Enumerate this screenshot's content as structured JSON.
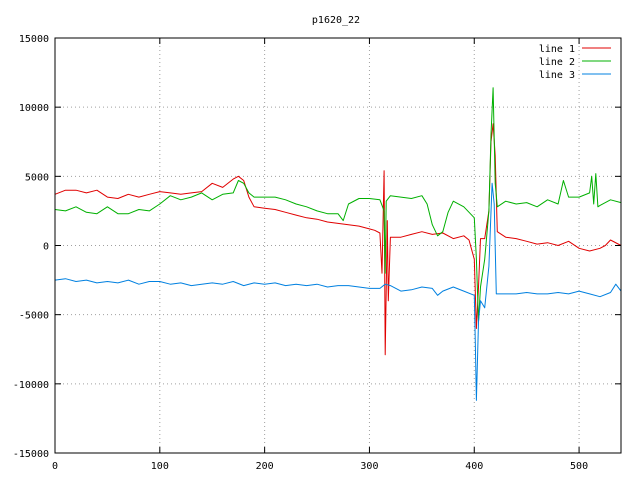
{
  "chart_data": {
    "type": "line",
    "title": "p1620_22",
    "xlabel": "",
    "ylabel": "",
    "xlim": [
      0,
      540
    ],
    "ylim": [
      -15000,
      15000
    ],
    "x_ticks": [
      0,
      100,
      200,
      300,
      400,
      500
    ],
    "y_ticks": [
      -15000,
      -10000,
      -5000,
      0,
      5000,
      10000,
      15000
    ],
    "x_tick_labels": [
      "0",
      "100",
      "200",
      "300",
      "400",
      "500"
    ],
    "y_tick_labels": [
      "-15000",
      "-10000",
      "-5000",
      "0",
      "5000",
      "10000",
      "15000"
    ],
    "grid": true,
    "legend_position": "top-right",
    "series": [
      {
        "name": "line 1",
        "color": "#e00000",
        "points": [
          [
            0,
            3700
          ],
          [
            10,
            4000
          ],
          [
            20,
            4000
          ],
          [
            30,
            3800
          ],
          [
            40,
            4000
          ],
          [
            50,
            3500
          ],
          [
            60,
            3400
          ],
          [
            70,
            3700
          ],
          [
            80,
            3500
          ],
          [
            90,
            3700
          ],
          [
            100,
            3900
          ],
          [
            110,
            3800
          ],
          [
            120,
            3700
          ],
          [
            130,
            3800
          ],
          [
            140,
            3900
          ],
          [
            150,
            4500
          ],
          [
            160,
            4200
          ],
          [
            170,
            4800
          ],
          [
            175,
            5000
          ],
          [
            180,
            4700
          ],
          [
            185,
            3500
          ],
          [
            190,
            2800
          ],
          [
            200,
            2700
          ],
          [
            210,
            2600
          ],
          [
            220,
            2400
          ],
          [
            230,
            2200
          ],
          [
            240,
            2000
          ],
          [
            250,
            1900
          ],
          [
            260,
            1700
          ],
          [
            270,
            1600
          ],
          [
            280,
            1500
          ],
          [
            290,
            1400
          ],
          [
            300,
            1200
          ],
          [
            305,
            1100
          ],
          [
            310,
            900
          ],
          [
            312,
            -2000
          ],
          [
            314,
            5400
          ],
          [
            315,
            -7900
          ],
          [
            317,
            1800
          ],
          [
            318,
            -4000
          ],
          [
            320,
            600
          ],
          [
            330,
            600
          ],
          [
            340,
            800
          ],
          [
            350,
            1000
          ],
          [
            360,
            800
          ],
          [
            370,
            900
          ],
          [
            380,
            500
          ],
          [
            390,
            700
          ],
          [
            395,
            400
          ],
          [
            400,
            -1000
          ],
          [
            402,
            -6000
          ],
          [
            404,
            -3000
          ],
          [
            406,
            500
          ],
          [
            410,
            500
          ],
          [
            414,
            2500
          ],
          [
            416,
            7500
          ],
          [
            418,
            8800
          ],
          [
            420,
            6500
          ],
          [
            422,
            1000
          ],
          [
            430,
            600
          ],
          [
            440,
            500
          ],
          [
            450,
            300
          ],
          [
            460,
            100
          ],
          [
            470,
            200
          ],
          [
            480,
            0
          ],
          [
            490,
            300
          ],
          [
            500,
            -200
          ],
          [
            510,
            -400
          ],
          [
            520,
            -200
          ],
          [
            525,
            0
          ],
          [
            530,
            400
          ],
          [
            540,
            0
          ]
        ]
      },
      {
        "name": "line 2",
        "color": "#00b000",
        "points": [
          [
            0,
            2600
          ],
          [
            10,
            2500
          ],
          [
            20,
            2800
          ],
          [
            30,
            2400
          ],
          [
            40,
            2300
          ],
          [
            50,
            2800
          ],
          [
            60,
            2300
          ],
          [
            70,
            2300
          ],
          [
            80,
            2600
          ],
          [
            90,
            2500
          ],
          [
            100,
            3000
          ],
          [
            110,
            3600
          ],
          [
            120,
            3300
          ],
          [
            130,
            3500
          ],
          [
            140,
            3800
          ],
          [
            150,
            3300
          ],
          [
            160,
            3700
          ],
          [
            170,
            3800
          ],
          [
            175,
            4700
          ],
          [
            180,
            4500
          ],
          [
            185,
            3800
          ],
          [
            190,
            3500
          ],
          [
            200,
            3500
          ],
          [
            210,
            3500
          ],
          [
            220,
            3300
          ],
          [
            230,
            3000
          ],
          [
            240,
            2800
          ],
          [
            250,
            2500
          ],
          [
            260,
            2300
          ],
          [
            270,
            2300
          ],
          [
            275,
            1800
          ],
          [
            280,
            3000
          ],
          [
            290,
            3400
          ],
          [
            300,
            3400
          ],
          [
            310,
            3300
          ],
          [
            314,
            2500
          ],
          [
            315,
            -2000
          ],
          [
            316,
            3200
          ],
          [
            320,
            3600
          ],
          [
            330,
            3500
          ],
          [
            340,
            3400
          ],
          [
            350,
            3600
          ],
          [
            355,
            3000
          ],
          [
            360,
            1500
          ],
          [
            365,
            700
          ],
          [
            370,
            1000
          ],
          [
            375,
            2400
          ],
          [
            380,
            3200
          ],
          [
            390,
            2800
          ],
          [
            400,
            2000
          ],
          [
            402,
            -1000
          ],
          [
            404,
            -5500
          ],
          [
            406,
            -3000
          ],
          [
            410,
            -1000
          ],
          [
            414,
            2500
          ],
          [
            416,
            8000
          ],
          [
            418,
            11400
          ],
          [
            420,
            4500
          ],
          [
            422,
            2800
          ],
          [
            430,
            3200
          ],
          [
            440,
            3000
          ],
          [
            450,
            3100
          ],
          [
            460,
            2800
          ],
          [
            470,
            3300
          ],
          [
            480,
            3000
          ],
          [
            485,
            4700
          ],
          [
            490,
            3500
          ],
          [
            500,
            3500
          ],
          [
            510,
            3800
          ],
          [
            512,
            5000
          ],
          [
            514,
            3000
          ],
          [
            516,
            5200
          ],
          [
            518,
            2800
          ],
          [
            520,
            2900
          ],
          [
            530,
            3300
          ],
          [
            540,
            3100
          ]
        ]
      },
      {
        "name": "line 3",
        "color": "#0080e0",
        "points": [
          [
            0,
            -2500
          ],
          [
            10,
            -2400
          ],
          [
            20,
            -2600
          ],
          [
            30,
            -2500
          ],
          [
            40,
            -2700
          ],
          [
            50,
            -2600
          ],
          [
            60,
            -2700
          ],
          [
            70,
            -2500
          ],
          [
            80,
            -2800
          ],
          [
            90,
            -2600
          ],
          [
            100,
            -2600
          ],
          [
            110,
            -2800
          ],
          [
            120,
            -2700
          ],
          [
            130,
            -2900
          ],
          [
            140,
            -2800
          ],
          [
            150,
            -2700
          ],
          [
            160,
            -2800
          ],
          [
            170,
            -2600
          ],
          [
            180,
            -2900
          ],
          [
            190,
            -2700
          ],
          [
            200,
            -2800
          ],
          [
            210,
            -2700
          ],
          [
            220,
            -2900
          ],
          [
            230,
            -2800
          ],
          [
            240,
            -2900
          ],
          [
            250,
            -2800
          ],
          [
            260,
            -3000
          ],
          [
            270,
            -2900
          ],
          [
            280,
            -2900
          ],
          [
            290,
            -3000
          ],
          [
            300,
            -3100
          ],
          [
            310,
            -3100
          ],
          [
            315,
            -2800
          ],
          [
            320,
            -2900
          ],
          [
            330,
            -3300
          ],
          [
            340,
            -3200
          ],
          [
            350,
            -3000
          ],
          [
            360,
            -3100
          ],
          [
            365,
            -3600
          ],
          [
            370,
            -3300
          ],
          [
            380,
            -3000
          ],
          [
            390,
            -3300
          ],
          [
            400,
            -3600
          ],
          [
            401,
            -7000
          ],
          [
            402,
            -11200
          ],
          [
            404,
            -5500
          ],
          [
            406,
            -4000
          ],
          [
            410,
            -4500
          ],
          [
            414,
            -1500
          ],
          [
            417,
            4500
          ],
          [
            419,
            3000
          ],
          [
            421,
            -3500
          ],
          [
            430,
            -3500
          ],
          [
            440,
            -3500
          ],
          [
            450,
            -3400
          ],
          [
            460,
            -3500
          ],
          [
            470,
            -3500
          ],
          [
            480,
            -3400
          ],
          [
            490,
            -3500
          ],
          [
            500,
            -3300
          ],
          [
            510,
            -3500
          ],
          [
            520,
            -3700
          ],
          [
            530,
            -3400
          ],
          [
            535,
            -2800
          ],
          [
            540,
            -3300
          ]
        ]
      }
    ]
  }
}
